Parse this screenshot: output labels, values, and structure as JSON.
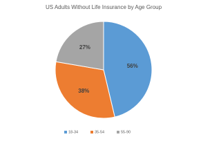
{
  "chart_data": {
    "type": "pie",
    "title": "US Adults Without Life Insurance by Age Group",
    "categories": [
      "18-34",
      "35-54",
      "55-90"
    ],
    "values": [
      56,
      38,
      27
    ],
    "value_labels": [
      "56%",
      "38%",
      "27%"
    ],
    "colors": [
      "#5b9bd5",
      "#ed7d31",
      "#a5a5a5"
    ],
    "legend": "bottom"
  }
}
